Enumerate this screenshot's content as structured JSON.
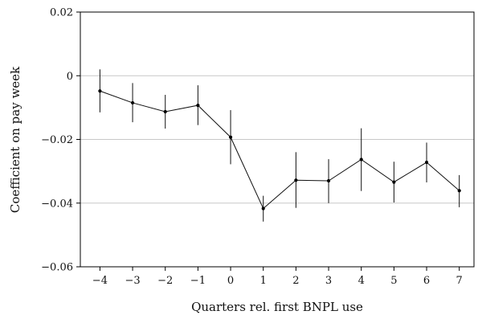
{
  "chart_data": {
    "type": "line",
    "title": "",
    "xlabel": "Quarters rel. first BNPL use",
    "ylabel": "Coefficient on pay week",
    "x": [
      -4,
      -3,
      -2,
      -1,
      0,
      1,
      2,
      3,
      4,
      5,
      6,
      7
    ],
    "x_tick_labels": [
      "−4",
      "−3",
      "−2",
      "−1",
      "0",
      "1",
      "2",
      "3",
      "4",
      "5",
      "6",
      "7"
    ],
    "y_ticks": [
      0.02,
      0,
      -0.02,
      -0.04,
      -0.06
    ],
    "y_tick_labels": [
      "0.02",
      "0",
      "−0.02",
      "−0.04",
      "−0.06"
    ],
    "ylim": [
      -0.06,
      0.02
    ],
    "xlim": [
      -4.6,
      7.45
    ],
    "grid": "horizontal",
    "series": [
      {
        "values": [
          -0.0048,
          -0.0085,
          -0.0113,
          -0.0093,
          -0.0193,
          -0.0417,
          -0.0328,
          -0.033,
          -0.0263,
          -0.0334,
          -0.0272,
          -0.0361
        ],
        "ci_lower": [
          -0.0115,
          -0.0146,
          -0.0166,
          -0.0155,
          -0.0278,
          -0.0458,
          -0.0415,
          -0.04,
          -0.0362,
          -0.0398,
          -0.0335,
          -0.0413
        ],
        "ci_upper": [
          0.002,
          -0.0023,
          -0.006,
          -0.003,
          -0.0108,
          -0.0377,
          -0.024,
          -0.0262,
          -0.0165,
          -0.027,
          -0.021,
          -0.0312
        ]
      }
    ]
  }
}
